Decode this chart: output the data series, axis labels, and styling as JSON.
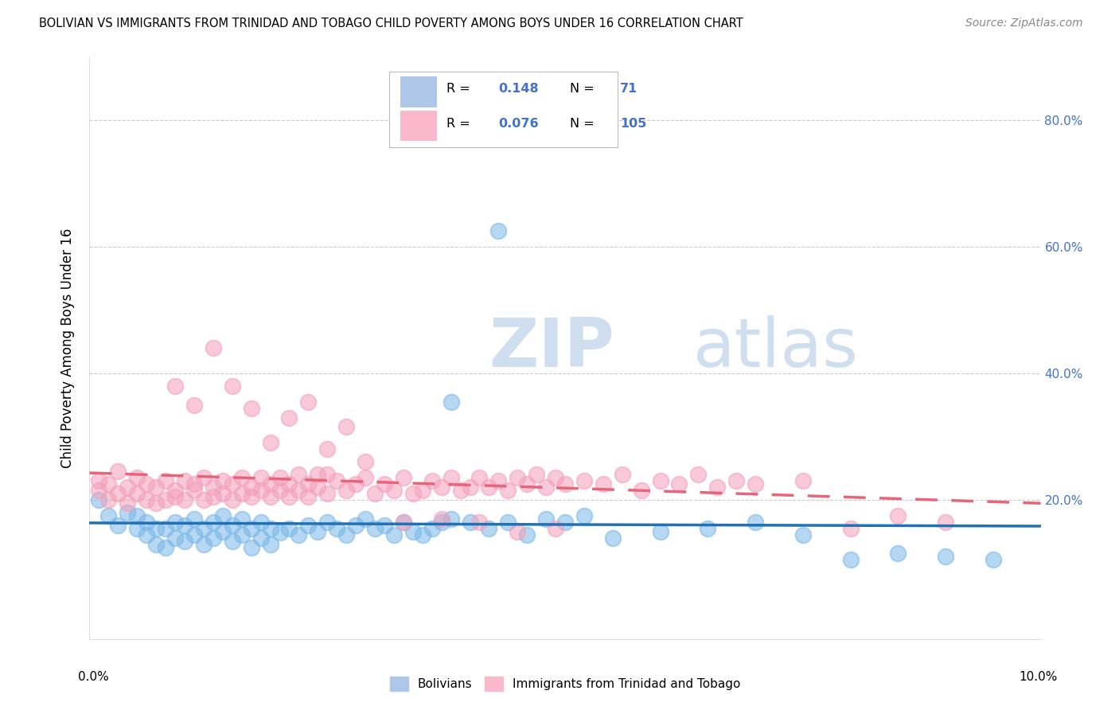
{
  "title": "BOLIVIAN VS IMMIGRANTS FROM TRINIDAD AND TOBAGO CHILD POVERTY AMONG BOYS UNDER 16 CORRELATION CHART",
  "source": "Source: ZipAtlas.com",
  "ylabel": "Child Poverty Among Boys Under 16",
  "xlim": [
    0.0,
    0.1
  ],
  "ylim": [
    -0.02,
    0.9
  ],
  "blue_R": 0.148,
  "blue_N": 71,
  "pink_R": 0.076,
  "pink_N": 105,
  "blue_color": "#7ab8e8",
  "pink_color": "#f4a0bb",
  "blue_line_color": "#2171b5",
  "pink_line_color": "#e8647a",
  "watermark_ZIP": "ZIP",
  "watermark_atlas": "atlas",
  "watermark_color": "#d0dff0",
  "legend_blue_label": "Bolivians",
  "legend_pink_label": "Immigrants from Trinidad and Tobago",
  "blue_scatter_x": [
    0.001,
    0.002,
    0.003,
    0.004,
    0.005,
    0.005,
    0.006,
    0.006,
    0.007,
    0.007,
    0.008,
    0.008,
    0.009,
    0.009,
    0.01,
    0.01,
    0.011,
    0.011,
    0.012,
    0.012,
    0.013,
    0.013,
    0.014,
    0.014,
    0.015,
    0.015,
    0.016,
    0.016,
    0.017,
    0.017,
    0.018,
    0.018,
    0.019,
    0.019,
    0.02,
    0.021,
    0.022,
    0.023,
    0.024,
    0.025,
    0.026,
    0.027,
    0.028,
    0.029,
    0.03,
    0.031,
    0.032,
    0.033,
    0.034,
    0.035,
    0.036,
    0.037,
    0.038,
    0.04,
    0.042,
    0.044,
    0.046,
    0.048,
    0.05,
    0.052,
    0.055,
    0.06,
    0.065,
    0.07,
    0.075,
    0.08,
    0.085,
    0.09,
    0.095,
    0.038,
    0.043
  ],
  "blue_scatter_y": [
    0.2,
    0.175,
    0.16,
    0.18,
    0.155,
    0.175,
    0.145,
    0.165,
    0.13,
    0.155,
    0.125,
    0.155,
    0.14,
    0.165,
    0.135,
    0.16,
    0.145,
    0.17,
    0.13,
    0.155,
    0.14,
    0.165,
    0.15,
    0.175,
    0.135,
    0.16,
    0.145,
    0.17,
    0.125,
    0.155,
    0.14,
    0.165,
    0.13,
    0.155,
    0.148,
    0.155,
    0.145,
    0.16,
    0.15,
    0.165,
    0.155,
    0.145,
    0.16,
    0.17,
    0.155,
    0.16,
    0.145,
    0.165,
    0.15,
    0.145,
    0.155,
    0.165,
    0.17,
    0.165,
    0.155,
    0.165,
    0.145,
    0.17,
    0.165,
    0.175,
    0.14,
    0.15,
    0.155,
    0.165,
    0.145,
    0.105,
    0.115,
    0.11,
    0.105,
    0.355,
    0.625
  ],
  "pink_scatter_x": [
    0.001,
    0.001,
    0.002,
    0.002,
    0.003,
    0.003,
    0.004,
    0.004,
    0.005,
    0.005,
    0.006,
    0.006,
    0.007,
    0.007,
    0.008,
    0.008,
    0.009,
    0.009,
    0.01,
    0.01,
    0.011,
    0.011,
    0.012,
    0.012,
    0.013,
    0.013,
    0.014,
    0.014,
    0.015,
    0.015,
    0.016,
    0.016,
    0.017,
    0.017,
    0.018,
    0.018,
    0.019,
    0.019,
    0.02,
    0.02,
    0.021,
    0.021,
    0.022,
    0.022,
    0.023,
    0.023,
    0.024,
    0.024,
    0.025,
    0.025,
    0.026,
    0.027,
    0.028,
    0.029,
    0.03,
    0.031,
    0.032,
    0.033,
    0.034,
    0.035,
    0.036,
    0.037,
    0.038,
    0.039,
    0.04,
    0.041,
    0.042,
    0.043,
    0.044,
    0.045,
    0.046,
    0.047,
    0.048,
    0.049,
    0.05,
    0.052,
    0.054,
    0.056,
    0.058,
    0.06,
    0.062,
    0.064,
    0.066,
    0.068,
    0.07,
    0.075,
    0.08,
    0.085,
    0.09,
    0.009,
    0.011,
    0.013,
    0.015,
    0.017,
    0.019,
    0.021,
    0.023,
    0.025,
    0.027,
    0.029,
    0.033,
    0.037,
    0.041,
    0.045,
    0.049
  ],
  "pink_scatter_y": [
    0.215,
    0.23,
    0.2,
    0.225,
    0.21,
    0.245,
    0.195,
    0.22,
    0.21,
    0.235,
    0.2,
    0.225,
    0.195,
    0.22,
    0.2,
    0.23,
    0.205,
    0.215,
    0.2,
    0.23,
    0.215,
    0.225,
    0.2,
    0.235,
    0.205,
    0.22,
    0.21,
    0.23,
    0.2,
    0.225,
    0.21,
    0.235,
    0.205,
    0.22,
    0.215,
    0.235,
    0.205,
    0.225,
    0.215,
    0.235,
    0.205,
    0.225,
    0.215,
    0.24,
    0.205,
    0.225,
    0.22,
    0.24,
    0.21,
    0.24,
    0.23,
    0.215,
    0.225,
    0.235,
    0.21,
    0.225,
    0.215,
    0.235,
    0.21,
    0.215,
    0.23,
    0.22,
    0.235,
    0.215,
    0.22,
    0.235,
    0.22,
    0.23,
    0.215,
    0.235,
    0.225,
    0.24,
    0.22,
    0.235,
    0.225,
    0.23,
    0.225,
    0.24,
    0.215,
    0.23,
    0.225,
    0.24,
    0.22,
    0.23,
    0.225,
    0.23,
    0.155,
    0.175,
    0.165,
    0.38,
    0.35,
    0.44,
    0.38,
    0.345,
    0.29,
    0.33,
    0.355,
    0.28,
    0.315,
    0.26,
    0.165,
    0.17,
    0.165,
    0.15,
    0.155
  ]
}
